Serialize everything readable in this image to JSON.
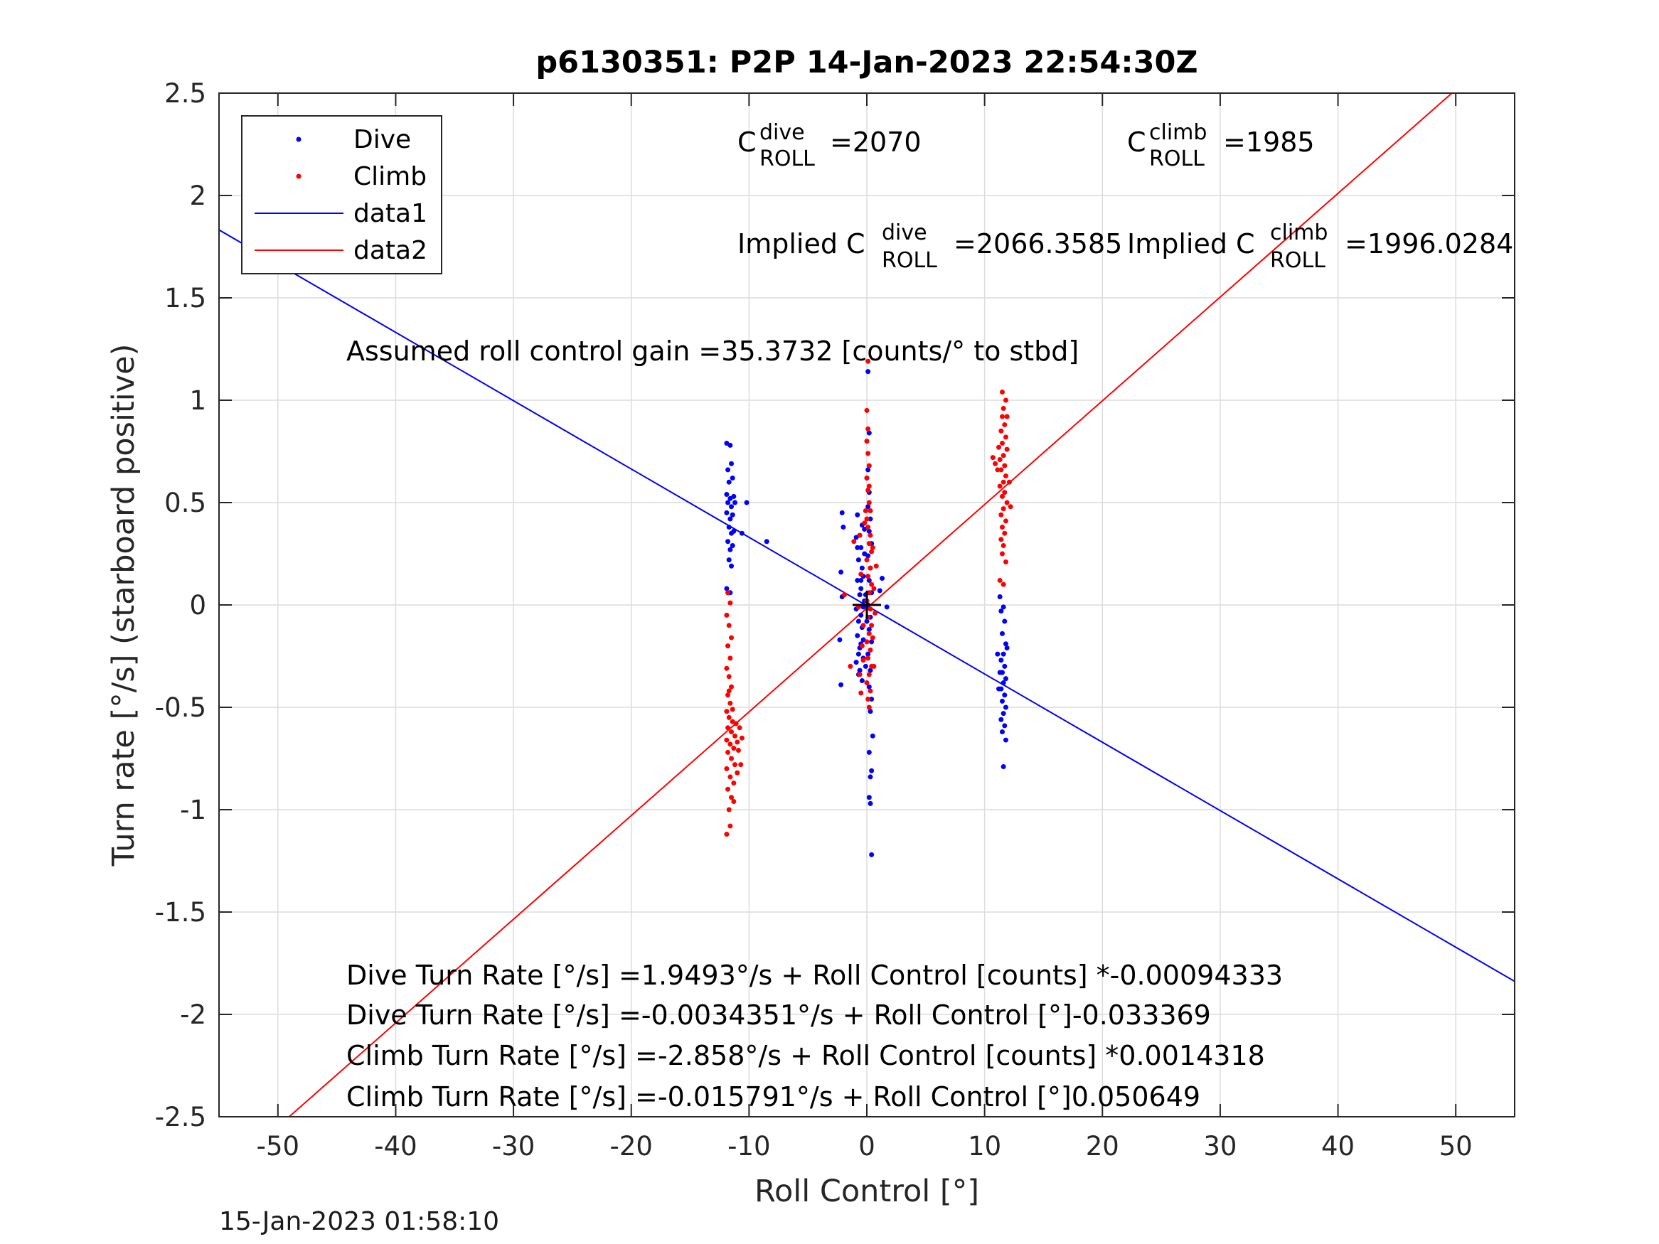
{
  "chart_data": {
    "type": "scatter",
    "title": "p6130351: P2P 14-Jan-2023 22:54:30Z",
    "xlabel": "Roll Control [°]",
    "ylabel": "Turn rate [°/s] (starboard positive)",
    "xlim": [
      -55,
      55
    ],
    "ylim": [
      -2.5,
      2.5
    ],
    "xticks": [
      -50,
      -40,
      -30,
      -20,
      -10,
      0,
      10,
      20,
      30,
      40,
      50
    ],
    "yticks": [
      -2.5,
      -2,
      -1.5,
      -1,
      -0.5,
      0,
      0.5,
      1,
      1.5,
      2,
      2.5
    ],
    "xtick_labels": [
      "-50",
      "-40",
      "-30",
      "-20",
      "-10",
      "0",
      "10",
      "20",
      "30",
      "40",
      "50"
    ],
    "ytick_labels": [
      "-2.5",
      "-2",
      "-1.5",
      "-1",
      "-0.5",
      "0",
      "0.5",
      "1",
      "1.5",
      "2",
      "2.5"
    ],
    "grid": true,
    "legend_position": "top-left",
    "legend": [
      "Dive",
      "Climb",
      "data1",
      "data2"
    ],
    "colors": {
      "dive": "#0000ff",
      "climb": "#ff0000",
      "marker": "#000000",
      "grid": "#dcdcdc",
      "axes": "#262626"
    },
    "series": [
      {
        "name": "Dive",
        "kind": "points",
        "points": [
          [
            -11.9,
            0.79
          ],
          [
            -11.6,
            0.78
          ],
          [
            -11.8,
            0.66
          ],
          [
            -11.5,
            0.69
          ],
          [
            -11.7,
            0.6
          ],
          [
            -11.4,
            0.62
          ],
          [
            -11.9,
            0.54
          ],
          [
            -11.6,
            0.52
          ],
          [
            -11.3,
            0.53
          ],
          [
            -11.8,
            0.5
          ],
          [
            -11.5,
            0.48
          ],
          [
            -11.2,
            0.5
          ],
          [
            -11.9,
            0.45
          ],
          [
            -11.6,
            0.42
          ],
          [
            -11.4,
            0.44
          ],
          [
            -11.7,
            0.38
          ],
          [
            -11.5,
            0.35
          ],
          [
            -11.3,
            0.36
          ],
          [
            -11.8,
            0.31
          ],
          [
            -11.6,
            0.27
          ],
          [
            -11.4,
            0.29
          ],
          [
            -11.7,
            0.22
          ],
          [
            -11.5,
            0.19
          ],
          [
            -10.2,
            0.5
          ],
          [
            -10.6,
            0.35
          ],
          [
            -8.5,
            0.31
          ],
          [
            -11.6,
            0.06
          ],
          [
            -11.9,
            0.08
          ],
          [
            -2.1,
            0.45
          ],
          [
            -2.0,
            0.38
          ],
          [
            -2.2,
            0.16
          ],
          [
            -2.1,
            0.04
          ],
          [
            -2.3,
            -0.17
          ],
          [
            -2.2,
            -0.39
          ],
          [
            -0.8,
            0.44
          ],
          [
            -0.9,
            0.33
          ],
          [
            -0.7,
            0.22
          ],
          [
            -0.8,
            0.12
          ],
          [
            -0.6,
            0.05
          ],
          [
            -0.9,
            -0.02
          ],
          [
            -0.7,
            -0.08
          ],
          [
            -0.8,
            -0.15
          ],
          [
            -0.6,
            -0.21
          ],
          [
            -0.9,
            -0.28
          ],
          [
            -0.7,
            -0.34
          ],
          [
            -0.5,
            0.28
          ],
          [
            -0.4,
            0.18
          ],
          [
            -0.5,
            0.08
          ],
          [
            -0.3,
            -0.01
          ],
          [
            -0.4,
            -0.11
          ],
          [
            -0.5,
            -0.19
          ],
          [
            -0.3,
            -0.26
          ],
          [
            -0.4,
            0.39
          ],
          [
            -0.2,
            0.25
          ],
          [
            -0.3,
            0.14
          ],
          [
            -0.6,
            -0.32
          ],
          [
            -0.4,
            -0.37
          ],
          [
            -0.5,
            -0.05
          ],
          [
            -0.2,
            0.02
          ],
          [
            -0.3,
            -0.17
          ],
          [
            -0.6,
            0.34
          ],
          [
            -0.8,
            0.28
          ],
          [
            -0.7,
            -0.24
          ],
          [
            -0.5,
            0.12
          ],
          [
            0.1,
            1.14
          ],
          [
            0.2,
            0.84
          ],
          [
            0.1,
            0.66
          ],
          [
            0.0,
            0.62
          ],
          [
            0.2,
            0.55
          ],
          [
            0.1,
            0.48
          ],
          [
            0.3,
            0.42
          ],
          [
            0.2,
            0.36
          ],
          [
            0.4,
            0.3
          ],
          [
            0.1,
            0.24
          ],
          [
            0.3,
            0.18
          ],
          [
            0.2,
            0.12
          ],
          [
            0.4,
            0.06
          ],
          [
            0.1,
            0.0
          ],
          [
            0.3,
            -0.06
          ],
          [
            0.2,
            -0.12
          ],
          [
            0.4,
            -0.18
          ],
          [
            0.1,
            -0.24
          ],
          [
            0.3,
            -0.32
          ],
          [
            0.2,
            -0.4
          ],
          [
            0.4,
            -0.46
          ],
          [
            0.3,
            -0.52
          ],
          [
            0.5,
            -0.64
          ],
          [
            0.2,
            -0.72
          ],
          [
            0.4,
            -0.81
          ],
          [
            0.3,
            -0.84
          ],
          [
            0.2,
            -0.94
          ],
          [
            0.3,
            -0.97
          ],
          [
            0.4,
            -1.22
          ],
          [
            1.3,
            0.13
          ],
          [
            1.7,
            -0.01
          ],
          [
            1.1,
            0.07
          ],
          [
            -0.1,
            0.05
          ],
          [
            0.0,
            -0.08
          ],
          [
            -0.2,
            0.37
          ],
          [
            -0.1,
            -0.3
          ],
          [
            11.4,
            -0.03
          ],
          [
            11.7,
            -0.08
          ],
          [
            11.5,
            -0.14
          ],
          [
            11.8,
            -0.19
          ],
          [
            11.6,
            -0.24
          ],
          [
            11.4,
            -0.27
          ],
          [
            11.7,
            -0.3
          ],
          [
            11.5,
            -0.33
          ],
          [
            11.8,
            -0.36
          ],
          [
            11.6,
            -0.38
          ],
          [
            11.4,
            -0.41
          ],
          [
            11.7,
            -0.44
          ],
          [
            11.5,
            -0.47
          ],
          [
            11.8,
            -0.5
          ],
          [
            11.6,
            -0.53
          ],
          [
            11.4,
            -0.56
          ],
          [
            11.7,
            -0.59
          ],
          [
            11.5,
            -0.62
          ],
          [
            11.8,
            -0.66
          ],
          [
            11.6,
            -0.79
          ],
          [
            11.1,
            -0.24
          ],
          [
            11.2,
            -0.41
          ],
          [
            11.3,
            -0.33
          ],
          [
            11.9,
            -0.21
          ],
          [
            11.3,
            0.04
          ],
          [
            11.6,
            -0.01
          ]
        ]
      },
      {
        "name": "Climb",
        "kind": "points",
        "points": [
          [
            -11.8,
            0.06
          ],
          [
            -11.6,
            0.01
          ],
          [
            -11.9,
            -0.05
          ],
          [
            -11.7,
            -0.1
          ],
          [
            -11.5,
            -0.16
          ],
          [
            -11.8,
            -0.2
          ],
          [
            -11.6,
            -0.26
          ],
          [
            -11.9,
            -0.31
          ],
          [
            -11.7,
            -0.35
          ],
          [
            -11.5,
            -0.4
          ],
          [
            -11.8,
            -0.44
          ],
          [
            -11.6,
            -0.48
          ],
          [
            -11.9,
            -0.52
          ],
          [
            -11.7,
            -0.55
          ],
          [
            -11.4,
            -0.57
          ],
          [
            -11.8,
            -0.6
          ],
          [
            -11.5,
            -0.62
          ],
          [
            -11.2,
            -0.64
          ],
          [
            -11.9,
            -0.66
          ],
          [
            -11.6,
            -0.68
          ],
          [
            -11.3,
            -0.7
          ],
          [
            -11.0,
            -0.67
          ],
          [
            -11.8,
            -0.72
          ],
          [
            -11.5,
            -0.75
          ],
          [
            -11.2,
            -0.78
          ],
          [
            -11.9,
            -0.8
          ],
          [
            -11.6,
            -0.84
          ],
          [
            -11.3,
            -0.87
          ],
          [
            -11.8,
            -0.9
          ],
          [
            -11.5,
            -0.94
          ],
          [
            -11.7,
            -1.0
          ],
          [
            -11.6,
            -1.08
          ],
          [
            -11.9,
            -1.12
          ],
          [
            -10.8,
            -0.6
          ],
          [
            -10.6,
            -0.65
          ],
          [
            -10.9,
            -0.71
          ],
          [
            -10.7,
            -0.78
          ],
          [
            -11.1,
            -0.58
          ],
          [
            -11.4,
            -0.51
          ],
          [
            -11.0,
            -0.82
          ],
          [
            -11.3,
            -0.96
          ],
          [
            -11.7,
            -0.42
          ],
          [
            0.1,
            1.19
          ],
          [
            0.0,
            0.95
          ],
          [
            0.1,
            0.86
          ],
          [
            0.0,
            0.8
          ],
          [
            0.1,
            0.74
          ],
          [
            0.2,
            0.68
          ],
          [
            0.0,
            0.62
          ],
          [
            0.1,
            0.56
          ],
          [
            0.2,
            0.5
          ],
          [
            0.3,
            0.46
          ],
          [
            0.0,
            0.42
          ],
          [
            0.1,
            0.38
          ],
          [
            0.3,
            0.34
          ],
          [
            0.2,
            0.3
          ],
          [
            0.4,
            0.26
          ],
          [
            0.0,
            0.22
          ],
          [
            0.3,
            0.18
          ],
          [
            0.1,
            0.14
          ],
          [
            0.4,
            0.1
          ],
          [
            0.2,
            0.06
          ],
          [
            0.0,
            0.02
          ],
          [
            0.3,
            -0.02
          ],
          [
            0.1,
            -0.06
          ],
          [
            0.4,
            -0.1
          ],
          [
            0.2,
            -0.14
          ],
          [
            0.0,
            -0.18
          ],
          [
            0.3,
            -0.22
          ],
          [
            0.1,
            -0.26
          ],
          [
            0.4,
            -0.3
          ],
          [
            0.2,
            -0.34
          ],
          [
            0.0,
            -0.38
          ],
          [
            0.3,
            -0.42
          ],
          [
            0.1,
            -0.46
          ],
          [
            0.2,
            -0.5
          ],
          [
            0.5,
            -0.16
          ],
          [
            0.6,
            0.08
          ],
          [
            0.5,
            0.28
          ],
          [
            0.6,
            -0.3
          ],
          [
            -0.6,
            0.34
          ],
          [
            -0.5,
            0.15
          ],
          [
            -0.7,
            -0.01
          ],
          [
            -0.4,
            -0.2
          ],
          [
            -0.6,
            -0.34
          ],
          [
            -0.5,
            -0.43
          ],
          [
            -0.2,
            0.4
          ],
          [
            -0.3,
            -0.1
          ],
          [
            -1.4,
            -0.3
          ],
          [
            -1.9,
            0.05
          ],
          [
            -1.1,
            0.31
          ],
          [
            0.7,
            -0.04
          ],
          [
            -0.1,
            0.46
          ],
          [
            0.2,
            0.58
          ],
          [
            -0.3,
            -0.27
          ],
          [
            0.8,
            0.19
          ],
          [
            11.5,
            1.04
          ],
          [
            11.8,
            1.0
          ],
          [
            11.6,
            0.96
          ],
          [
            11.9,
            0.92
          ],
          [
            11.7,
            0.88
          ],
          [
            11.4,
            0.85
          ],
          [
            11.8,
            0.82
          ],
          [
            11.5,
            0.79
          ],
          [
            11.9,
            0.76
          ],
          [
            11.6,
            0.73
          ],
          [
            11.3,
            0.71
          ],
          [
            11.7,
            0.68
          ],
          [
            11.4,
            0.66
          ],
          [
            11.8,
            0.63
          ],
          [
            11.6,
            0.6
          ],
          [
            11.3,
            0.58
          ],
          [
            11.7,
            0.55
          ],
          [
            11.5,
            0.53
          ],
          [
            11.9,
            0.5
          ],
          [
            11.6,
            0.47
          ],
          [
            11.4,
            0.44
          ],
          [
            11.8,
            0.41
          ],
          [
            11.5,
            0.38
          ],
          [
            11.7,
            0.35
          ],
          [
            11.4,
            0.32
          ],
          [
            11.6,
            0.29
          ],
          [
            11.5,
            0.25
          ],
          [
            11.8,
            0.21
          ],
          [
            11.6,
            0.1
          ],
          [
            10.9,
            0.69
          ],
          [
            10.7,
            0.72
          ],
          [
            11.1,
            0.66
          ],
          [
            11.2,
            0.77
          ],
          [
            12.1,
            0.6
          ],
          [
            12.2,
            0.48
          ],
          [
            11.3,
            0.12
          ],
          [
            11.9,
            0.92
          ],
          [
            11.5,
            0.92
          ]
        ]
      },
      {
        "name": "data1",
        "kind": "line",
        "slope": -0.033369,
        "intercept": -0.0034351
      },
      {
        "name": "data2",
        "kind": "line",
        "slope": 0.050649,
        "intercept": -0.015791
      }
    ],
    "crosshair_marker": [
      0,
      0
    ],
    "annotations": {
      "c_dive_base": "C",
      "c_dive_sup": "dive",
      "c_dive_sub": "ROLL",
      "c_dive_value": "=2070",
      "c_climb_base": "C",
      "c_climb_sup": "climb",
      "c_climb_sub": "ROLL",
      "c_climb_value": "=1985",
      "implied_dive_prefix": "Implied C",
      "implied_dive_sup": "dive",
      "implied_dive_sub": "ROLL",
      "implied_dive_value": "=2066.3585",
      "implied_climb_prefix": "Implied C",
      "implied_climb_sup": "climb",
      "implied_climb_sub": "ROLL",
      "implied_climb_value": "=1996.0284",
      "gain": "Assumed roll control gain =35.3732 [counts/° to stbd]",
      "eq1": "Dive Turn Rate [°/s] =1.9493°/s + Roll Control [counts] *-0.00094333",
      "eq2": "Dive Turn Rate [°/s] =-0.0034351°/s + Roll Control [°]-0.033369",
      "eq3": "Climb Turn Rate [°/s] =-2.858°/s + Roll Control [counts] *0.0014318",
      "eq4": "Climb Turn Rate [°/s] =-0.015791°/s + Roll Control [°]0.050649"
    },
    "timestamp": "15-Jan-2023 01:58:10"
  }
}
